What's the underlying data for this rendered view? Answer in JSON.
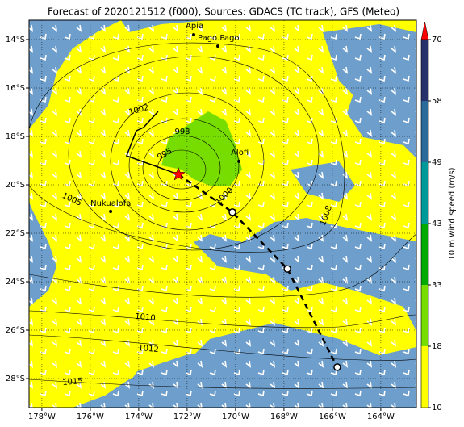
{
  "title": "Forecast of 2020121512 (f000), Sources: GDACS (TC track), GFS (Meteo)",
  "map": {
    "xlim": [
      -178.53,
      -162.53
    ],
    "ylim": [
      -29.2,
      -13.2
    ],
    "xticks": [
      {
        "value": -178,
        "label": "178°W"
      },
      {
        "value": -176,
        "label": "176°W"
      },
      {
        "value": -174,
        "label": "174°W"
      },
      {
        "value": -172,
        "label": "172°W"
      },
      {
        "value": -170,
        "label": "170°W"
      },
      {
        "value": -168,
        "label": "168°W"
      },
      {
        "value": -166,
        "label": "166°W"
      },
      {
        "value": -164,
        "label": "164°W"
      }
    ],
    "yticks": [
      {
        "value": -14,
        "label": "14°S"
      },
      {
        "value": -16,
        "label": "16°S"
      },
      {
        "value": -18,
        "label": "18°S"
      },
      {
        "value": -20,
        "label": "20°S"
      },
      {
        "value": -22,
        "label": "22°S"
      },
      {
        "value": -24,
        "label": "24°S"
      },
      {
        "value": -26,
        "label": "26°S"
      },
      {
        "value": -28,
        "label": "28°S"
      }
    ],
    "grid": true
  },
  "places": [
    {
      "name": "Apia",
      "lon": -171.73,
      "lat": -13.8
    },
    {
      "name": "Pago Pago",
      "lon": -170.73,
      "lat": -14.27
    },
    {
      "name": "Alofi",
      "lon": -169.86,
      "lat": -19.03
    },
    {
      "name": "Nukualofa",
      "lon": -175.16,
      "lat": -21.1
    }
  ],
  "center": {
    "lon": -172.36,
    "lat": -19.57
  },
  "track": {
    "lon": [
      -173.2,
      -173.8,
      -174.1,
      -174.5,
      -172.36
    ],
    "lat": [
      -16.97,
      -17.63,
      -17.77,
      -18.8,
      -19.57
    ]
  },
  "forecast": {
    "lon": [
      -172.36,
      -170.13,
      -167.86,
      -165.8
    ],
    "lat": [
      -19.57,
      -21.13,
      -23.47,
      -27.53
    ]
  },
  "isobar_labels": [
    1002,
    998,
    995,
    1000,
    1005,
    1008,
    1010,
    1012,
    1015
  ],
  "colorbar": {
    "label": "10 m wind speed (m/s)",
    "ticks": [
      10,
      18,
      33,
      43,
      49,
      58,
      70
    ],
    "colors": [
      "#ffff00",
      "#77dd00",
      "#00aa00",
      "#009999",
      "#2a6a9a",
      "#26306a"
    ],
    "extend_color": "#ff0000"
  }
}
